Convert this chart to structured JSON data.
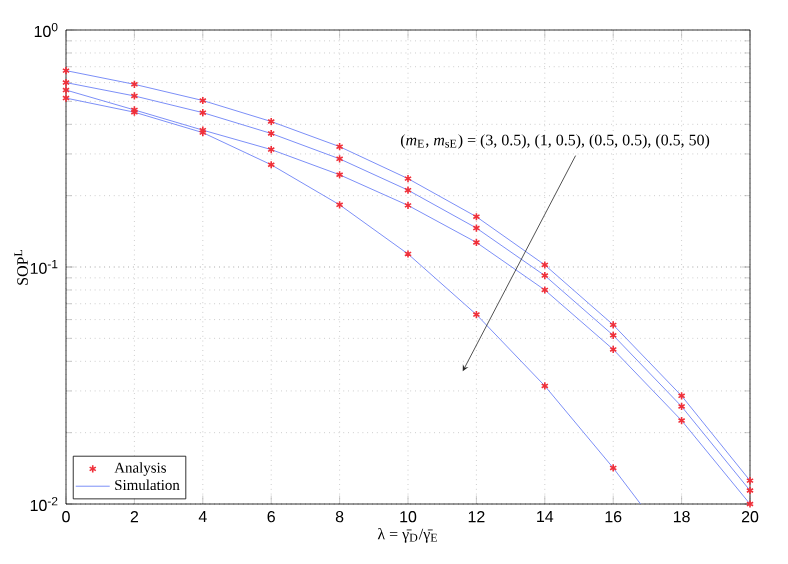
{
  "chart_data": {
    "type": "line",
    "xlabel": "λ = γ̄$_{D}$/γ̄$_{E}$",
    "ylabel": "SOP$^{L}$",
    "x": [
      0,
      2,
      4,
      6,
      8,
      10,
      12,
      14,
      16,
      18,
      20
    ],
    "series": [
      {
        "name": "Simulation",
        "color": "#7b8ff7",
        "marker": "none",
        "values": [
          0.674,
          0.59,
          0.504,
          0.411,
          0.322,
          0.236,
          0.163,
          0.102,
          0.057,
          0.0286,
          0.01255
        ]
      },
      {
        "color": "#7b8ff7",
        "marker": "none",
        "values": [
          0.6,
          0.527,
          0.448,
          0.366,
          0.286,
          0.211,
          0.146,
          0.092,
          0.0515,
          0.0258,
          0.0114
        ]
      },
      {
        "color": "#7b8ff7",
        "marker": "none",
        "values": [
          0.558,
          0.46,
          0.378,
          0.313,
          0.245,
          0.182,
          0.127,
          0.08,
          0.0449,
          0.0225,
          0.01
        ]
      },
      {
        "color": "#7b8ff7",
        "marker": "none",
        "x": [
          0,
          2,
          4,
          6,
          8,
          10,
          12,
          14,
          16,
          16.8
        ],
        "values": [
          0.516,
          0.45,
          0.369,
          0.27,
          0.183,
          0.1135,
          0.063,
          0.0315,
          0.0142,
          0.01
        ]
      },
      {
        "name": "Analysis",
        "type": "scatter",
        "color": "#f0303a",
        "marker": "cross",
        "values": [
          0.674,
          0.59,
          0.504,
          0.411,
          0.322,
          0.236,
          0.163,
          0.102,
          0.057,
          0.0286,
          0.01255
        ]
      },
      {
        "type": "scatter",
        "color": "#f0303a",
        "marker": "cross",
        "values": [
          0.6,
          0.527,
          0.448,
          0.366,
          0.286,
          0.211,
          0.146,
          0.092,
          0.0515,
          0.0258,
          0.0114
        ]
      },
      {
        "type": "scatter",
        "color": "#f0303a",
        "marker": "cross",
        "values": [
          0.558,
          0.46,
          0.378,
          0.313,
          0.245,
          0.182,
          0.127,
          0.08,
          0.0449,
          0.0225,
          0.01
        ]
      },
      {
        "type": "scatter",
        "color": "#f0303a",
        "marker": "cross",
        "x": [
          0,
          2,
          4,
          6,
          8,
          10,
          12,
          14,
          16
        ],
        "values": [
          0.516,
          0.45,
          0.369,
          0.27,
          0.183,
          0.1135,
          0.063,
          0.0315,
          0.0142
        ]
      }
    ],
    "xlim": [
      0,
      20
    ],
    "xticks": [
      0,
      2,
      4,
      6,
      8,
      10,
      12,
      14,
      16,
      18,
      20
    ],
    "ylim": [
      0.01,
      1
    ],
    "yticks": [
      {
        "value": 0.01,
        "label": "10$^{-2}$"
      },
      {
        "value": 0.1,
        "label": "10$^{-1}$"
      },
      {
        "value": 1,
        "label": "10$^{0}$"
      }
    ],
    "log": "y",
    "grid": true,
    "legend": "bottom left",
    "annotations": [
      "(*m*$_{E}$, *m*$_{sE}$) = (3, 0.5), (1, 0.5), (0.5, 0.5), (0.5, 50)"
    ]
  }
}
